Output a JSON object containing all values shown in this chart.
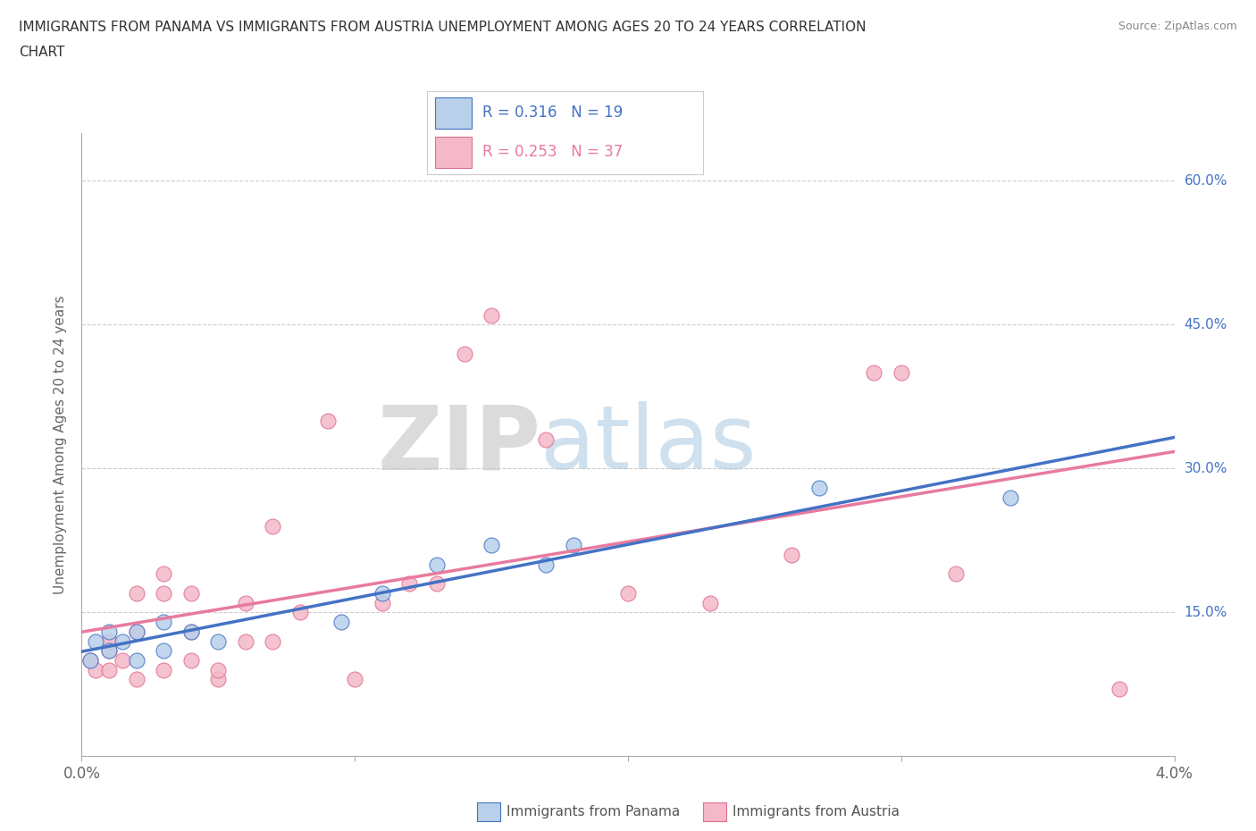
{
  "title_line1": "IMMIGRANTS FROM PANAMA VS IMMIGRANTS FROM AUSTRIA UNEMPLOYMENT AMONG AGES 20 TO 24 YEARS CORRELATION",
  "title_line2": "CHART",
  "source": "Source: ZipAtlas.com",
  "ylabel": "Unemployment Among Ages 20 to 24 years",
  "xlim": [
    0.0,
    0.04
  ],
  "ylim": [
    0.0,
    0.65
  ],
  "xtick_positions": [
    0.0,
    0.01,
    0.02,
    0.03,
    0.04
  ],
  "xticklabels": [
    "0.0%",
    "",
    "",
    "",
    "4.0%"
  ],
  "ytick_positions": [
    0.15,
    0.3,
    0.45,
    0.6
  ],
  "yticklabels": [
    "15.0%",
    "30.0%",
    "45.0%",
    "60.0%"
  ],
  "panama_fill_color": "#b8d0ea",
  "panama_edge_color": "#4472c4",
  "austria_fill_color": "#f4b8c8",
  "austria_edge_color": "#e07090",
  "panama_line_color": "#4472c4",
  "austria_line_color": "#e87a9f",
  "panama_R": 0.316,
  "panama_N": 19,
  "austria_R": 0.253,
  "austria_N": 37,
  "legend_text_color_panama": "#4472c4",
  "legend_text_color_austria": "#e87a9f",
  "legend_label1": "Immigrants from Panama",
  "legend_label2": "Immigrants from Austria",
  "watermark_zip": "ZIP",
  "watermark_atlas": "atlas",
  "background_color": "#ffffff",
  "grid_color": "#cccccc",
  "panama_x": [
    0.0003,
    0.0005,
    0.001,
    0.001,
    0.0015,
    0.002,
    0.002,
    0.003,
    0.003,
    0.004,
    0.005,
    0.0095,
    0.011,
    0.013,
    0.015,
    0.017,
    0.018,
    0.027,
    0.034
  ],
  "panama_y": [
    0.1,
    0.12,
    0.11,
    0.13,
    0.12,
    0.1,
    0.13,
    0.11,
    0.14,
    0.13,
    0.12,
    0.14,
    0.17,
    0.2,
    0.22,
    0.2,
    0.22,
    0.28,
    0.27
  ],
  "austria_x": [
    0.0003,
    0.0005,
    0.001,
    0.001,
    0.001,
    0.0015,
    0.002,
    0.002,
    0.002,
    0.003,
    0.003,
    0.003,
    0.004,
    0.004,
    0.004,
    0.005,
    0.005,
    0.006,
    0.006,
    0.007,
    0.007,
    0.008,
    0.009,
    0.01,
    0.011,
    0.012,
    0.013,
    0.014,
    0.015,
    0.017,
    0.02,
    0.023,
    0.026,
    0.029,
    0.03,
    0.032,
    0.038
  ],
  "austria_y": [
    0.1,
    0.09,
    0.09,
    0.11,
    0.12,
    0.1,
    0.08,
    0.13,
    0.17,
    0.09,
    0.17,
    0.19,
    0.1,
    0.13,
    0.17,
    0.08,
    0.09,
    0.12,
    0.16,
    0.12,
    0.24,
    0.15,
    0.35,
    0.08,
    0.16,
    0.18,
    0.18,
    0.42,
    0.46,
    0.33,
    0.17,
    0.16,
    0.21,
    0.4,
    0.4,
    0.19,
    0.07
  ]
}
